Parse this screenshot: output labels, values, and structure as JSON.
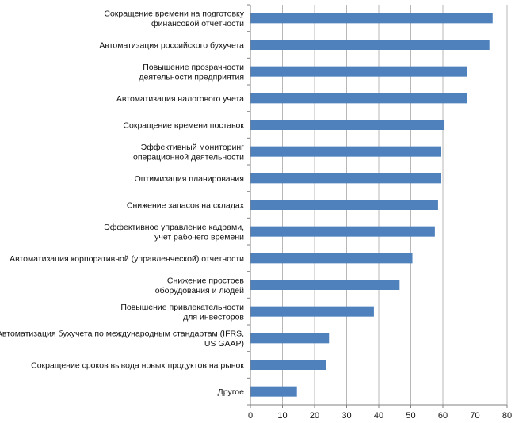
{
  "chart_data": {
    "type": "bar",
    "orientation": "horizontal",
    "categories": [
      [
        "Сокращение времени на подготовку",
        "финансовой отчетности"
      ],
      [
        "Автоматизация российского  бухучета"
      ],
      [
        "Повышение  прозрачности",
        "деятельности предприятия"
      ],
      [
        "Автоматизация налогового учета"
      ],
      [
        "Сокращение времени поставок"
      ],
      [
        "Эффективный  мониторинг",
        "операционной деятельности"
      ],
      [
        "Оптимизация планирования"
      ],
      [
        "Снижение  запасов на складах"
      ],
      [
        "Эффективное  управление кадрами,",
        "учет рабочего времени"
      ],
      [
        "Автоматизация корпоративной (управленческой) отчетности"
      ],
      [
        "Снижение  простоев",
        "оборудования и людей"
      ],
      [
        "Повышение  привлекательности",
        "для инвесторов"
      ],
      [
        "Автоматизация бухучета по международным  стандартам (IFRS,",
        "US GAAP)"
      ],
      [
        "Сокращение сроков вывода новых продуктов  на рынок"
      ],
      [
        "Другое"
      ]
    ],
    "values": [
      75.5,
      74.5,
      67.5,
      67.5,
      60.5,
      59.5,
      59.5,
      58.5,
      57.5,
      50.5,
      46.5,
      38.5,
      24.5,
      23.5,
      14.5
    ],
    "xlim": [
      0,
      80
    ],
    "xticks": [
      0,
      10,
      20,
      30,
      40,
      50,
      60,
      70,
      80
    ],
    "grid": "vertical",
    "bar_color": "#4f81bd",
    "grid_color": "#b7b7b7",
    "title": "",
    "xlabel": "",
    "ylabel": ""
  }
}
